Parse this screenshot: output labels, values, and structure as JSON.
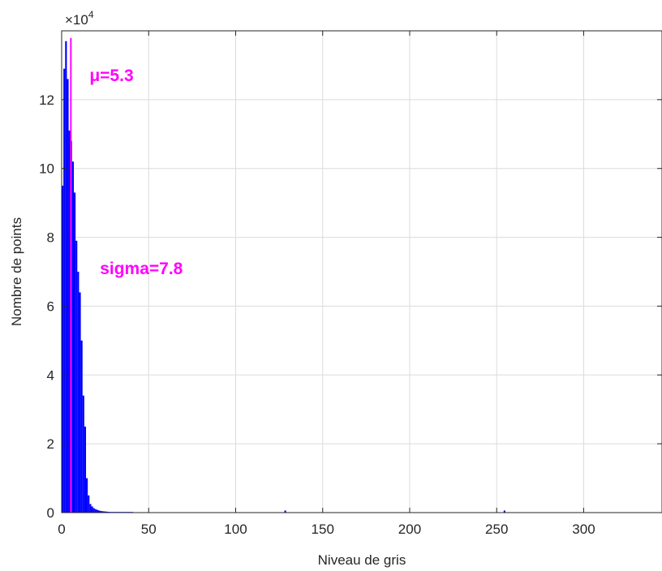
{
  "chart_data": {
    "type": "bar",
    "xlabel": "Niveau de gris",
    "ylabel": "Nombre de points",
    "xlim": [
      0,
      345
    ],
    "ylim": [
      0,
      140000
    ],
    "xticks": [
      0,
      50,
      100,
      150,
      200,
      250,
      300
    ],
    "yticks": [
      0,
      20000,
      40000,
      60000,
      80000,
      100000,
      120000
    ],
    "ytick_labels": [
      "0",
      "2",
      "4",
      "6",
      "8",
      "10",
      "12"
    ],
    "y_exponent_base": "×10",
    "y_exponent_power": "4",
    "grid": true,
    "bar_color": "#0000ff",
    "mean_line_color": "#ff00ff",
    "x": [
      0,
      1,
      2,
      3,
      4,
      5,
      6,
      7,
      8,
      9,
      10,
      11,
      12,
      13,
      14,
      15,
      16,
      17,
      18,
      19,
      20,
      21,
      22,
      23,
      24,
      25,
      26,
      27,
      28,
      29,
      30,
      31,
      32,
      33,
      34,
      35,
      36,
      37,
      38,
      39,
      40,
      128,
      254
    ],
    "values": [
      95000,
      129000,
      137000,
      126000,
      111000,
      108000,
      102000,
      93000,
      79000,
      70000,
      64000,
      50000,
      34000,
      25000,
      10000,
      5000,
      2500,
      1800,
      1300,
      1000,
      800,
      600,
      500,
      400,
      350,
      300,
      250,
      200,
      150,
      120,
      100,
      80,
      70,
      60,
      50,
      40,
      30,
      25,
      20,
      15,
      10,
      600,
      600
    ],
    "mean_value": 5.3,
    "annotations": [
      {
        "text": "μ=5.3",
        "x": 16,
        "y": 127000,
        "color": "#ff00ff"
      },
      {
        "text": "sigma=7.8",
        "x": 22,
        "y": 71000,
        "color": "#ff00ff"
      }
    ]
  }
}
